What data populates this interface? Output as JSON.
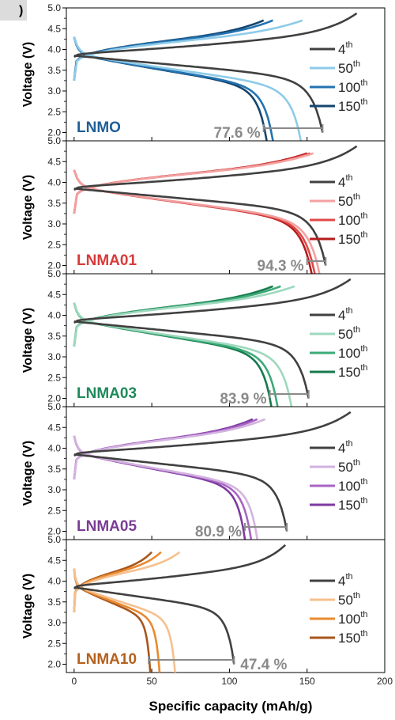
{
  "figure_label": ")",
  "chart_data": {
    "type": "line",
    "xlabel": "Specific capacity (mAh/g)",
    "ylabel": "Voltage (V)",
    "xlim": [
      -5,
      200
    ],
    "xticks": [
      "0",
      "50",
      "100",
      "150",
      "200"
    ],
    "ylim": [
      1.8,
      5.0
    ],
    "yticks": [
      "2.0",
      "2.5",
      "3.0",
      "3.5",
      "4.0",
      "4.5",
      "5.0"
    ],
    "legend": [
      "4",
      "50",
      "100",
      "150"
    ],
    "legend_sup": "th",
    "legend_position": "right",
    "panels": [
      {
        "sample": "LNMO",
        "sample_color": "#1f5f99",
        "retention": "77.6 %",
        "retention_bar": [
          122,
          160
        ],
        "colors": [
          "#404040",
          "#8ecbe8",
          "#2373b0",
          "#14456f"
        ],
        "series": [
          {
            "name": "4th",
            "discharge_end": 160,
            "charge_end": 182
          },
          {
            "name": "50th",
            "discharge_end": 146,
            "charge_end": 147
          },
          {
            "name": "100th",
            "discharge_end": 128,
            "charge_end": 128
          },
          {
            "name": "150th",
            "discharge_end": 124,
            "charge_end": 122
          }
        ]
      },
      {
        "sample": "LNMA01",
        "sample_color": "#d93a3a",
        "retention": "94.3 %",
        "retention_bar": [
          150,
          162
        ],
        "colors": [
          "#404040",
          "#f3a0a0",
          "#e04848",
          "#b51c1c"
        ],
        "series": [
          {
            "name": "4th",
            "discharge_end": 162,
            "charge_end": 182
          },
          {
            "name": "50th",
            "discharge_end": 158,
            "charge_end": 154
          },
          {
            "name": "100th",
            "discharge_end": 155,
            "charge_end": 152
          },
          {
            "name": "150th",
            "discharge_end": 153,
            "charge_end": 150
          }
        ]
      },
      {
        "sample": "LNMA03",
        "sample_color": "#1e8a5a",
        "retention": "83.9 %",
        "retention_bar": [
          126,
          151
        ],
        "colors": [
          "#404040",
          "#9ed8bd",
          "#3caa78",
          "#167a4c"
        ],
        "series": [
          {
            "name": "4th",
            "discharge_end": 151,
            "charge_end": 178
          },
          {
            "name": "50th",
            "discharge_end": 140,
            "charge_end": 142
          },
          {
            "name": "100th",
            "discharge_end": 131,
            "charge_end": 133
          },
          {
            "name": "150th",
            "discharge_end": 127,
            "charge_end": 128
          }
        ]
      },
      {
        "sample": "LNMA05",
        "sample_color": "#7a3d96",
        "retention": "80.9 %",
        "retention_bar": [
          110,
          137
        ],
        "colors": [
          "#404040",
          "#d3b3e0",
          "#a765c4",
          "#7e3aa0"
        ],
        "series": [
          {
            "name": "4th",
            "discharge_end": 137,
            "charge_end": 178
          },
          {
            "name": "50th",
            "discharge_end": 118,
            "charge_end": 123
          },
          {
            "name": "100th",
            "discharge_end": 114,
            "charge_end": 118
          },
          {
            "name": "150th",
            "discharge_end": 110,
            "charge_end": 115
          }
        ]
      },
      {
        "sample": "LNMA10",
        "sample_color": "#b5611e",
        "retention": "47.4 %",
        "retention_bar": [
          48,
          103
        ],
        "colors": [
          "#404040",
          "#f5c08e",
          "#e88a30",
          "#a8561c"
        ],
        "series": [
          {
            "name": "4th",
            "discharge_end": 103,
            "charge_end": 136
          },
          {
            "name": "50th",
            "discharge_end": 65,
            "charge_end": 68
          },
          {
            "name": "100th",
            "discharge_end": 55,
            "charge_end": 56
          },
          {
            "name": "150th",
            "discharge_end": 49,
            "charge_end": 50
          }
        ]
      }
    ]
  }
}
